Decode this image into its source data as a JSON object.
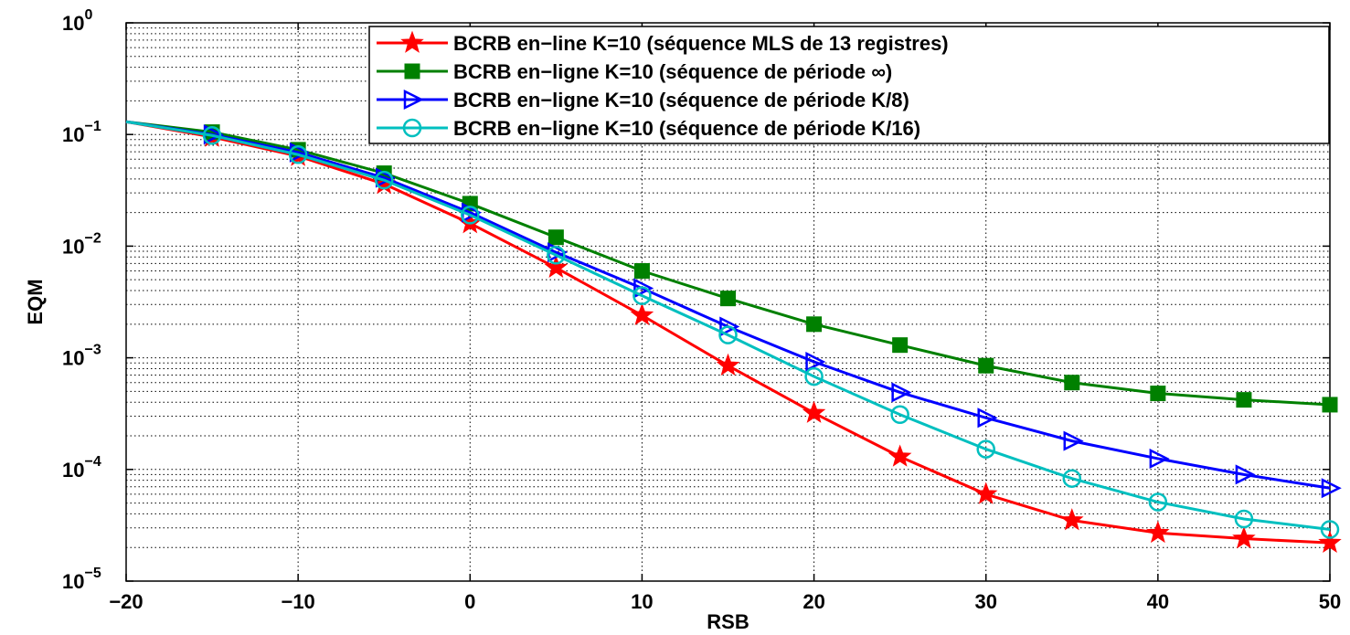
{
  "chart_data": {
    "type": "line",
    "title": "",
    "xlabel": "RSB",
    "ylabel": "EQM",
    "xlim": [
      -20,
      50
    ],
    "ylim": [
      1e-05,
      1
    ],
    "yscale": "log",
    "grid": true,
    "legend_position": "top-right",
    "x_ticks": [
      "−20",
      "−10",
      "0",
      "10",
      "20",
      "30",
      "40",
      "50"
    ],
    "y_tick_exponents": [
      "0",
      "−1",
      "−2",
      "−3",
      "−4",
      "−5"
    ],
    "y_tick_base": "10",
    "x": [
      -20,
      -15,
      -10,
      -5,
      0,
      5,
      10,
      15,
      20,
      25,
      30,
      35,
      40,
      45,
      50
    ],
    "series": [
      {
        "name": "BCRB en−line K=10 (séquence MLS de 13 registres)",
        "color": "#ff0000",
        "marker": "star",
        "values": [
          0.13,
          0.095,
          0.064,
          0.036,
          0.016,
          0.0064,
          0.0024,
          0.00085,
          0.00032,
          0.00013,
          6e-05,
          3.5e-05,
          2.7e-05,
          2.4e-05,
          2.2e-05
        ]
      },
      {
        "name": "BCRB en−ligne K=10 (séquence de période ∞)",
        "color": "#008000",
        "marker": "square",
        "values": [
          0.13,
          0.105,
          0.073,
          0.045,
          0.024,
          0.012,
          0.006,
          0.0034,
          0.002,
          0.0013,
          0.00085,
          0.0006,
          0.00048,
          0.00042,
          0.00038
        ]
      },
      {
        "name": "BCRB en−ligne K=10 (séquence de période K/8)",
        "color": "#0000ff",
        "marker": "triangle-right",
        "values": [
          0.13,
          0.1,
          0.069,
          0.041,
          0.02,
          0.0088,
          0.0042,
          0.0019,
          0.00092,
          0.00049,
          0.00029,
          0.00018,
          0.000125,
          9e-05,
          6.8e-05
        ]
      },
      {
        "name": "BCRB en−ligne K=10 (séquence de période K/16)",
        "color": "#00bfbf",
        "marker": "circle",
        "values": [
          0.13,
          0.098,
          0.066,
          0.039,
          0.019,
          0.0083,
          0.0036,
          0.0016,
          0.00068,
          0.00031,
          0.000152,
          8.3e-05,
          5.1e-05,
          3.6e-05,
          2.9e-05
        ]
      }
    ]
  }
}
